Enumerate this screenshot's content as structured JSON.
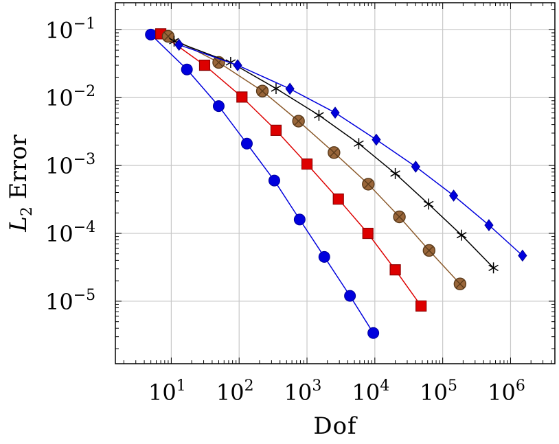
{
  "chart_data": {
    "type": "line",
    "title": "",
    "xlabel": "Dof",
    "ylabel_main": "L",
    "ylabel_sub": "2",
    "ylabel_rest": " Error",
    "xscale": "log",
    "yscale": "log",
    "xlim": [
      1.5,
      4500000
    ],
    "ylim": [
      1.2e-06,
      0.25
    ],
    "grid": true,
    "legend": "none",
    "x_ticks": [
      {
        "value": 10,
        "base": "10",
        "exp": "1"
      },
      {
        "value": 100,
        "base": "10",
        "exp": "2"
      },
      {
        "value": 1000,
        "base": "10",
        "exp": "3"
      },
      {
        "value": 10000,
        "base": "10",
        "exp": "4"
      },
      {
        "value": 100000,
        "base": "10",
        "exp": "5"
      },
      {
        "value": 1000000,
        "base": "10",
        "exp": "6"
      }
    ],
    "y_ticks": [
      {
        "value": 0.1,
        "base": "10",
        "exp": "−1"
      },
      {
        "value": 0.01,
        "base": "10",
        "exp": "−2"
      },
      {
        "value": 0.001,
        "base": "10",
        "exp": "−3"
      },
      {
        "value": 0.0001,
        "base": "10",
        "exp": "−4"
      },
      {
        "value": 1e-05,
        "base": "10",
        "exp": "−5"
      }
    ],
    "series": [
      {
        "color": "#0000dd",
        "marker": "circle",
        "x": [
          5,
          17,
          50,
          130,
          330,
          780,
          1800,
          4300,
          9500
        ],
        "y": [
          0.085,
          0.026,
          0.0075,
          0.0021,
          0.0006,
          0.00016,
          4.5e-05,
          1.2e-05,
          3.4e-06
        ]
      },
      {
        "color": "#dd0000",
        "marker": "square",
        "x": [
          7,
          31,
          110,
          350,
          1000,
          2900,
          7900,
          20000,
          48000
        ],
        "y": [
          0.087,
          0.03,
          0.0102,
          0.0033,
          0.00105,
          0.00032,
          0.0001,
          2.9e-05,
          8.5e-06
        ]
      },
      {
        "color": "#8b5a2b",
        "marker": "otimes",
        "x": [
          9,
          50,
          220,
          750,
          2500,
          8000,
          23000,
          63000,
          180000
        ],
        "y": [
          0.08,
          0.033,
          0.0125,
          0.0045,
          0.00155,
          0.00053,
          0.000175,
          5.6e-05,
          1.8e-05
        ]
      },
      {
        "color": "#000000",
        "marker": "asterisk",
        "x": [
          11,
          75,
          350,
          1500,
          5800,
          20000,
          62000,
          190000,
          560000
        ],
        "y": [
          0.068,
          0.033,
          0.0136,
          0.0055,
          0.0021,
          0.00076,
          0.00027,
          9.4e-05,
          3.1e-05
        ]
      },
      {
        "color": "#0000dd",
        "marker": "diamond",
        "x": [
          13,
          95,
          560,
          2600,
          10500,
          40000,
          145000,
          480000,
          1500000
        ],
        "y": [
          0.06,
          0.03,
          0.0135,
          0.006,
          0.0024,
          0.00096,
          0.00036,
          0.000132,
          4.7e-05
        ]
      }
    ]
  }
}
